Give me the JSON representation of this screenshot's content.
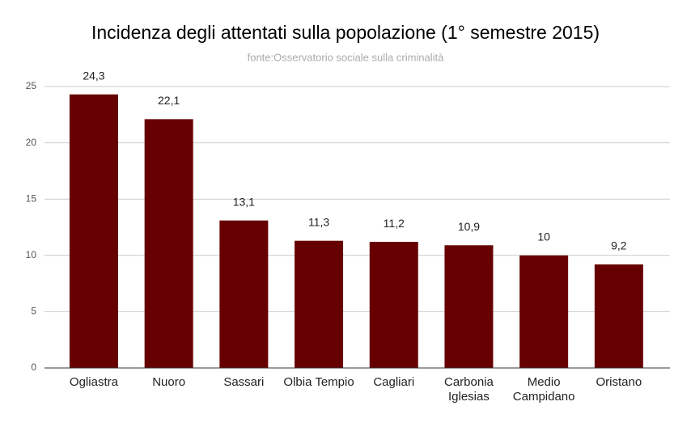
{
  "chart_data": {
    "type": "bar",
    "title": "Incidenza degli attentati sulla popolazione (1° semestre 2015)",
    "subtitle": "fonte:Osservatorio sociale sulla criminalità",
    "categories": [
      "Ogliastra",
      "Nuoro",
      "Sassari",
      "Olbia Tempio",
      "Cagliari",
      "Carbonia Iglesias",
      "Medio Campidano",
      "Oristano"
    ],
    "values": [
      24.3,
      22.1,
      13.1,
      11.3,
      11.2,
      10.9,
      10,
      9.2
    ],
    "value_labels": [
      "24,3",
      "22,1",
      "13,1",
      "11,3",
      "11,2",
      "10,9",
      "10",
      "9,2"
    ],
    "color": "#660000",
    "ylim": [
      0,
      25
    ],
    "yticks": [
      0,
      5,
      10,
      15,
      20,
      25
    ],
    "grid": true
  }
}
